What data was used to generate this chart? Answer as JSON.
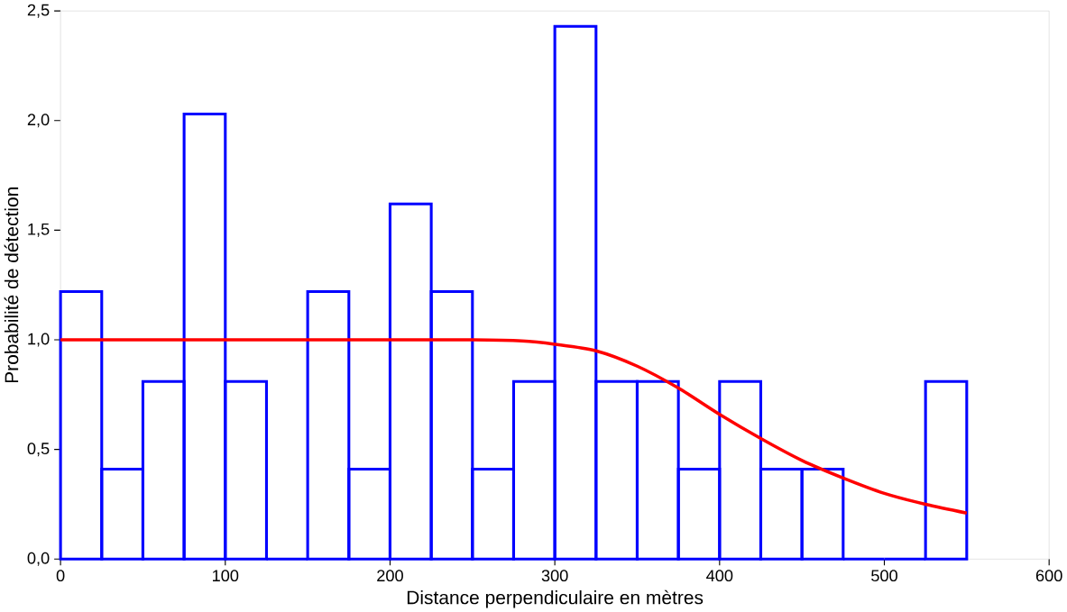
{
  "chart_data": {
    "type": "histogram",
    "xlabel": "Distance perpendiculaire en mètres",
    "ylabel": "Probabilité de détection",
    "xlim": [
      0,
      600
    ],
    "ylim": [
      0,
      2.5
    ],
    "xticks": [
      0,
      100,
      200,
      300,
      400,
      500,
      600
    ],
    "yticks": [
      {
        "value": 0,
        "label": "0,0"
      },
      {
        "value": 0.5,
        "label": "0,5"
      },
      {
        "value": 1,
        "label": "1,0"
      },
      {
        "value": 1.5,
        "label": "1,5"
      },
      {
        "value": 2,
        "label": "2,0"
      },
      {
        "value": 2.5,
        "label": "2,5"
      }
    ],
    "grid": false,
    "series": [
      {
        "color": "#0000ff",
        "bins": [
          0,
          25,
          50,
          75,
          100,
          125,
          150,
          175,
          200,
          225,
          250,
          275,
          300,
          325,
          350,
          375,
          400,
          425,
          450,
          475,
          500,
          525,
          550
        ],
        "values": [
          1.22,
          0.41,
          0.81,
          2.03,
          0.81,
          0,
          1.22,
          0.41,
          1.62,
          1.22,
          0.41,
          0.81,
          2.43,
          0.81,
          0.81,
          0.41,
          0.81,
          0.41,
          0.41,
          0,
          0,
          0.81
        ]
      },
      {
        "type": "line",
        "color": "#ff0000",
        "x": [
          0,
          100,
          200,
          250,
          280,
          300,
          325,
          350,
          375,
          400,
          425,
          450,
          475,
          500,
          525,
          550
        ],
        "values": [
          1.0,
          1.0,
          1.0,
          1.0,
          0.995,
          0.98,
          0.95,
          0.88,
          0.78,
          0.66,
          0.55,
          0.45,
          0.37,
          0.3,
          0.25,
          0.21
        ]
      }
    ]
  }
}
